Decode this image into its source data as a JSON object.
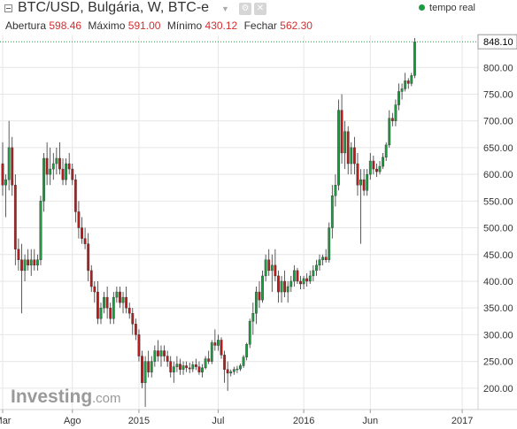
{
  "header": {
    "title": "BTC/USD, Bulgária, W, BTC-e",
    "live_label": "tempo real",
    "ohlc": [
      {
        "label": "Abertura",
        "value": "598.46"
      },
      {
        "label": "Máximo",
        "value": "591.00"
      },
      {
        "label": "Mínimo",
        "value": "430.12"
      },
      {
        "label": "Fechar",
        "value": "562.30"
      }
    ],
    "icons": [
      "collapse-icon",
      "dropdown-caret-icon",
      "settings-icon",
      "close-icon"
    ]
  },
  "watermark": {
    "main": "Investing",
    "sub": ".com"
  },
  "colors": {
    "up": "#1e9a40",
    "down": "#b71c1c",
    "grid": "#e6e6e6",
    "last_price_line": "#1e9a40",
    "live_dot": "#1e9a40"
  },
  "chart_data": {
    "type": "candlestick",
    "interval": "weekly",
    "title": "BTC/USD, Bulgária, W, BTC-e",
    "ylim": [
      160,
      860
    ],
    "y_ticks": [
      200,
      250,
      300,
      350,
      400,
      450,
      500,
      550,
      600,
      650,
      700,
      750,
      800
    ],
    "y_tick_labels": [
      "200.00",
      "250.00",
      "300.00",
      "350.00",
      "400.00",
      "450.00",
      "500.00",
      "550.00",
      "600.00",
      "650.00",
      "700.00",
      "750.00",
      "800.00"
    ],
    "x_ticks": [
      {
        "label": "Mar",
        "index": 0
      },
      {
        "label": "Ago",
        "index": 22
      },
      {
        "label": "2015",
        "index": 43
      },
      {
        "label": "Jul",
        "index": 68
      },
      {
        "label": "2016",
        "index": 95
      },
      {
        "label": "Jun",
        "index": 116
      },
      {
        "label": "2017",
        "index": 145
      }
    ],
    "last_price": 848.1,
    "last_price_label": "848.10",
    "grid": true,
    "candles": [
      {
        "o": 620,
        "h": 660,
        "l": 560,
        "c": 580
      },
      {
        "o": 580,
        "h": 600,
        "l": 520,
        "c": 590
      },
      {
        "o": 590,
        "h": 700,
        "l": 570,
        "c": 650
      },
      {
        "o": 650,
        "h": 670,
        "l": 560,
        "c": 580
      },
      {
        "o": 580,
        "h": 600,
        "l": 430,
        "c": 460
      },
      {
        "o": 460,
        "h": 480,
        "l": 420,
        "c": 440
      },
      {
        "o": 440,
        "h": 470,
        "l": 340,
        "c": 420
      },
      {
        "o": 420,
        "h": 450,
        "l": 400,
        "c": 440
      },
      {
        "o": 440,
        "h": 460,
        "l": 420,
        "c": 430
      },
      {
        "o": 430,
        "h": 460,
        "l": 410,
        "c": 440
      },
      {
        "o": 440,
        "h": 460,
        "l": 420,
        "c": 430
      },
      {
        "o": 430,
        "h": 450,
        "l": 420,
        "c": 440
      },
      {
        "o": 440,
        "h": 560,
        "l": 430,
        "c": 550
      },
      {
        "o": 550,
        "h": 640,
        "l": 530,
        "c": 630
      },
      {
        "o": 630,
        "h": 660,
        "l": 580,
        "c": 600
      },
      {
        "o": 600,
        "h": 650,
        "l": 580,
        "c": 610
      },
      {
        "o": 610,
        "h": 640,
        "l": 590,
        "c": 620
      },
      {
        "o": 620,
        "h": 650,
        "l": 600,
        "c": 630
      },
      {
        "o": 630,
        "h": 660,
        "l": 600,
        "c": 610
      },
      {
        "o": 610,
        "h": 630,
        "l": 580,
        "c": 590
      },
      {
        "o": 590,
        "h": 630,
        "l": 580,
        "c": 620
      },
      {
        "o": 620,
        "h": 640,
        "l": 600,
        "c": 610
      },
      {
        "o": 610,
        "h": 620,
        "l": 580,
        "c": 590
      },
      {
        "o": 590,
        "h": 600,
        "l": 510,
        "c": 530
      },
      {
        "o": 530,
        "h": 550,
        "l": 480,
        "c": 500
      },
      {
        "o": 500,
        "h": 520,
        "l": 470,
        "c": 480
      },
      {
        "o": 480,
        "h": 500,
        "l": 460,
        "c": 470
      },
      {
        "o": 470,
        "h": 490,
        "l": 400,
        "c": 420
      },
      {
        "o": 420,
        "h": 430,
        "l": 380,
        "c": 390
      },
      {
        "o": 390,
        "h": 400,
        "l": 360,
        "c": 380
      },
      {
        "o": 380,
        "h": 400,
        "l": 320,
        "c": 330
      },
      {
        "o": 330,
        "h": 360,
        "l": 320,
        "c": 350
      },
      {
        "o": 350,
        "h": 380,
        "l": 340,
        "c": 370
      },
      {
        "o": 370,
        "h": 390,
        "l": 330,
        "c": 350
      },
      {
        "o": 350,
        "h": 360,
        "l": 320,
        "c": 330
      },
      {
        "o": 330,
        "h": 380,
        "l": 320,
        "c": 370
      },
      {
        "o": 370,
        "h": 390,
        "l": 360,
        "c": 380
      },
      {
        "o": 380,
        "h": 390,
        "l": 350,
        "c": 360
      },
      {
        "o": 360,
        "h": 380,
        "l": 340,
        "c": 370
      },
      {
        "o": 370,
        "h": 390,
        "l": 340,
        "c": 350
      },
      {
        "o": 350,
        "h": 360,
        "l": 330,
        "c": 340
      },
      {
        "o": 340,
        "h": 350,
        "l": 300,
        "c": 320
      },
      {
        "o": 320,
        "h": 330,
        "l": 290,
        "c": 300
      },
      {
        "o": 300,
        "h": 310,
        "l": 250,
        "c": 260
      },
      {
        "o": 260,
        "h": 270,
        "l": 200,
        "c": 210
      },
      {
        "o": 210,
        "h": 260,
        "l": 165,
        "c": 250
      },
      {
        "o": 250,
        "h": 270,
        "l": 220,
        "c": 230
      },
      {
        "o": 230,
        "h": 260,
        "l": 220,
        "c": 250
      },
      {
        "o": 250,
        "h": 280,
        "l": 240,
        "c": 270
      },
      {
        "o": 270,
        "h": 290,
        "l": 250,
        "c": 260
      },
      {
        "o": 260,
        "h": 280,
        "l": 240,
        "c": 270
      },
      {
        "o": 270,
        "h": 280,
        "l": 250,
        "c": 260
      },
      {
        "o": 260,
        "h": 270,
        "l": 240,
        "c": 250
      },
      {
        "o": 250,
        "h": 260,
        "l": 220,
        "c": 230
      },
      {
        "o": 230,
        "h": 250,
        "l": 210,
        "c": 240
      },
      {
        "o": 240,
        "h": 260,
        "l": 230,
        "c": 245
      },
      {
        "o": 245,
        "h": 255,
        "l": 225,
        "c": 235
      },
      {
        "o": 235,
        "h": 250,
        "l": 225,
        "c": 242
      },
      {
        "o": 242,
        "h": 250,
        "l": 230,
        "c": 238
      },
      {
        "o": 238,
        "h": 248,
        "l": 228,
        "c": 236
      },
      {
        "o": 236,
        "h": 250,
        "l": 230,
        "c": 244
      },
      {
        "o": 244,
        "h": 255,
        "l": 234,
        "c": 240
      },
      {
        "o": 240,
        "h": 250,
        "l": 225,
        "c": 230
      },
      {
        "o": 230,
        "h": 245,
        "l": 220,
        "c": 238
      },
      {
        "o": 238,
        "h": 260,
        "l": 235,
        "c": 255
      },
      {
        "o": 255,
        "h": 270,
        "l": 245,
        "c": 250
      },
      {
        "o": 250,
        "h": 290,
        "l": 245,
        "c": 285
      },
      {
        "o": 285,
        "h": 310,
        "l": 270,
        "c": 280
      },
      {
        "o": 280,
        "h": 300,
        "l": 270,
        "c": 290
      },
      {
        "o": 290,
        "h": 295,
        "l": 255,
        "c": 262
      },
      {
        "o": 262,
        "h": 270,
        "l": 210,
        "c": 235
      },
      {
        "o": 235,
        "h": 250,
        "l": 195,
        "c": 228
      },
      {
        "o": 228,
        "h": 235,
        "l": 222,
        "c": 231
      },
      {
        "o": 231,
        "h": 240,
        "l": 225,
        "c": 235
      },
      {
        "o": 235,
        "h": 242,
        "l": 228,
        "c": 236
      },
      {
        "o": 236,
        "h": 246,
        "l": 232,
        "c": 242
      },
      {
        "o": 242,
        "h": 262,
        "l": 238,
        "c": 258
      },
      {
        "o": 258,
        "h": 285,
        "l": 252,
        "c": 282
      },
      {
        "o": 282,
        "h": 330,
        "l": 275,
        "c": 325
      },
      {
        "o": 325,
        "h": 360,
        "l": 300,
        "c": 340
      },
      {
        "o": 340,
        "h": 390,
        "l": 320,
        "c": 380
      },
      {
        "o": 380,
        "h": 400,
        "l": 350,
        "c": 365
      },
      {
        "o": 365,
        "h": 420,
        "l": 360,
        "c": 410
      },
      {
        "o": 410,
        "h": 450,
        "l": 400,
        "c": 440
      },
      {
        "o": 440,
        "h": 460,
        "l": 410,
        "c": 420
      },
      {
        "o": 420,
        "h": 450,
        "l": 380,
        "c": 430
      },
      {
        "o": 430,
        "h": 460,
        "l": 400,
        "c": 410
      },
      {
        "o": 410,
        "h": 420,
        "l": 360,
        "c": 380
      },
      {
        "o": 380,
        "h": 410,
        "l": 360,
        "c": 400
      },
      {
        "o": 400,
        "h": 420,
        "l": 370,
        "c": 380
      },
      {
        "o": 380,
        "h": 400,
        "l": 360,
        "c": 390
      },
      {
        "o": 390,
        "h": 410,
        "l": 380,
        "c": 400
      },
      {
        "o": 400,
        "h": 430,
        "l": 390,
        "c": 420
      },
      {
        "o": 420,
        "h": 425,
        "l": 395,
        "c": 400
      },
      {
        "o": 400,
        "h": 410,
        "l": 385,
        "c": 395
      },
      {
        "o": 395,
        "h": 410,
        "l": 385,
        "c": 405
      },
      {
        "o": 405,
        "h": 415,
        "l": 390,
        "c": 400
      },
      {
        "o": 400,
        "h": 420,
        "l": 395,
        "c": 410
      },
      {
        "o": 410,
        "h": 430,
        "l": 400,
        "c": 420
      },
      {
        "o": 420,
        "h": 440,
        "l": 410,
        "c": 430
      },
      {
        "o": 430,
        "h": 450,
        "l": 420,
        "c": 440
      },
      {
        "o": 440,
        "h": 450,
        "l": 430,
        "c": 445
      },
      {
        "o": 445,
        "h": 460,
        "l": 435,
        "c": 440
      },
      {
        "o": 440,
        "h": 510,
        "l": 435,
        "c": 500
      },
      {
        "o": 500,
        "h": 580,
        "l": 480,
        "c": 560
      },
      {
        "o": 560,
        "h": 600,
        "l": 540,
        "c": 580
      },
      {
        "o": 580,
        "h": 740,
        "l": 570,
        "c": 720
      },
      {
        "o": 720,
        "h": 750,
        "l": 620,
        "c": 640
      },
      {
        "o": 640,
        "h": 700,
        "l": 610,
        "c": 680
      },
      {
        "o": 680,
        "h": 690,
        "l": 600,
        "c": 620
      },
      {
        "o": 620,
        "h": 660,
        "l": 600,
        "c": 650
      },
      {
        "o": 650,
        "h": 670,
        "l": 600,
        "c": 620
      },
      {
        "o": 620,
        "h": 640,
        "l": 560,
        "c": 580
      },
      {
        "o": 580,
        "h": 610,
        "l": 470,
        "c": 590
      },
      {
        "o": 590,
        "h": 610,
        "l": 560,
        "c": 570
      },
      {
        "o": 570,
        "h": 610,
        "l": 560,
        "c": 600
      },
      {
        "o": 600,
        "h": 640,
        "l": 590,
        "c": 625
      },
      {
        "o": 625,
        "h": 635,
        "l": 600,
        "c": 610
      },
      {
        "o": 610,
        "h": 620,
        "l": 595,
        "c": 605
      },
      {
        "o": 605,
        "h": 625,
        "l": 600,
        "c": 615
      },
      {
        "o": 615,
        "h": 640,
        "l": 610,
        "c": 632
      },
      {
        "o": 632,
        "h": 660,
        "l": 625,
        "c": 655
      },
      {
        "o": 655,
        "h": 720,
        "l": 650,
        "c": 705
      },
      {
        "o": 705,
        "h": 715,
        "l": 690,
        "c": 700
      },
      {
        "o": 700,
        "h": 740,
        "l": 690,
        "c": 730
      },
      {
        "o": 730,
        "h": 770,
        "l": 720,
        "c": 755
      },
      {
        "o": 755,
        "h": 770,
        "l": 740,
        "c": 760
      },
      {
        "o": 760,
        "h": 790,
        "l": 755,
        "c": 775
      },
      {
        "o": 775,
        "h": 780,
        "l": 760,
        "c": 770
      },
      {
        "o": 770,
        "h": 790,
        "l": 765,
        "c": 785
      },
      {
        "o": 785,
        "h": 855,
        "l": 780,
        "c": 848
      }
    ]
  }
}
